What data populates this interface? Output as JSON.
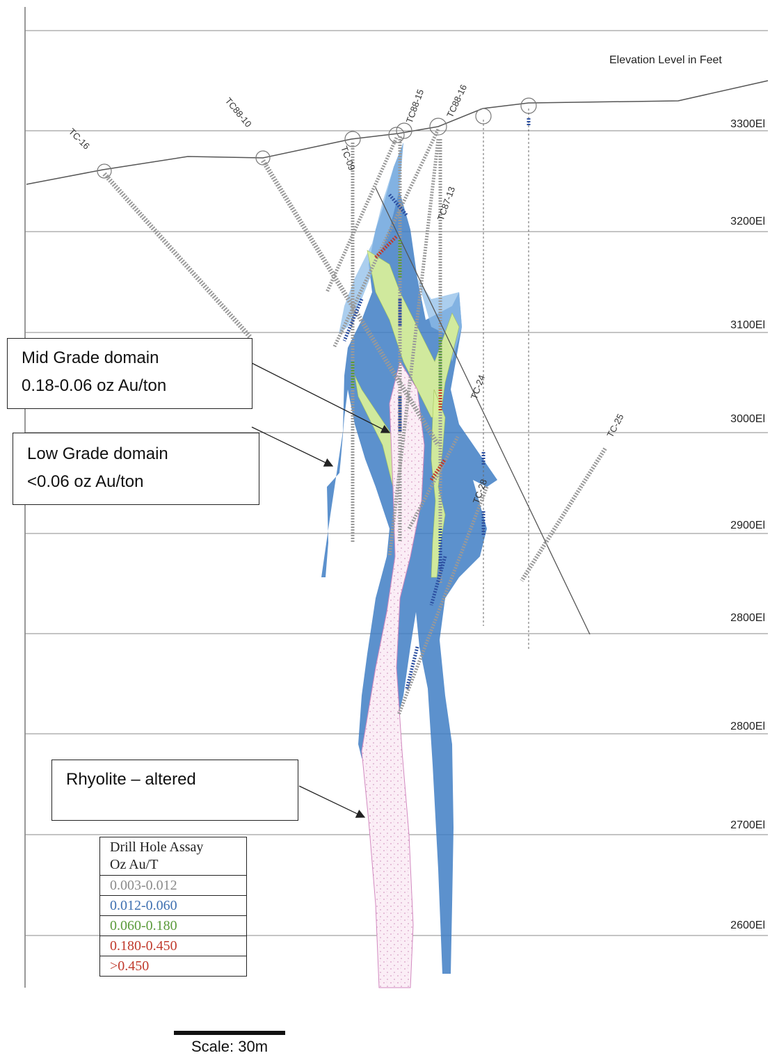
{
  "header": {
    "elevation_title": "Elevation Level in Feet"
  },
  "elevations": [
    "3300El",
    "3200El",
    "3100El",
    "3000El",
    "2900El",
    "2800El",
    "2800El",
    "2700El",
    "2600El"
  ],
  "holes": [
    "TC-16",
    "TC88-10",
    "TC-09",
    "TC88-15",
    "TC88-16",
    "TC87-13",
    "TC-24",
    "TC-25",
    "TC-28"
  ],
  "callouts": {
    "mid": {
      "line1": "Mid Grade domain",
      "line2": "0.18-0.06 oz Au/ton"
    },
    "low": {
      "line1": "Low Grade domain",
      "line2": "<0.06 oz Au/ton"
    },
    "rhyolite": {
      "line1": "Rhyolite – altered"
    }
  },
  "legend": {
    "title_line1": "Drill Hole Assay",
    "title_line2": "Oz Au/T",
    "items": [
      {
        "label": "0.003-0.012",
        "color": "#8a8a8a"
      },
      {
        "label": "0.012-0.060",
        "color": "#3d6fb0"
      },
      {
        "label": "0.060-0.180",
        "color": "#5a9a3a"
      },
      {
        "label": "0.180-0.450",
        "color": "#c0392b"
      },
      {
        "label": ">0.450",
        "color": "#c0392b"
      }
    ]
  },
  "scale": {
    "label": "Scale: 30m"
  }
}
